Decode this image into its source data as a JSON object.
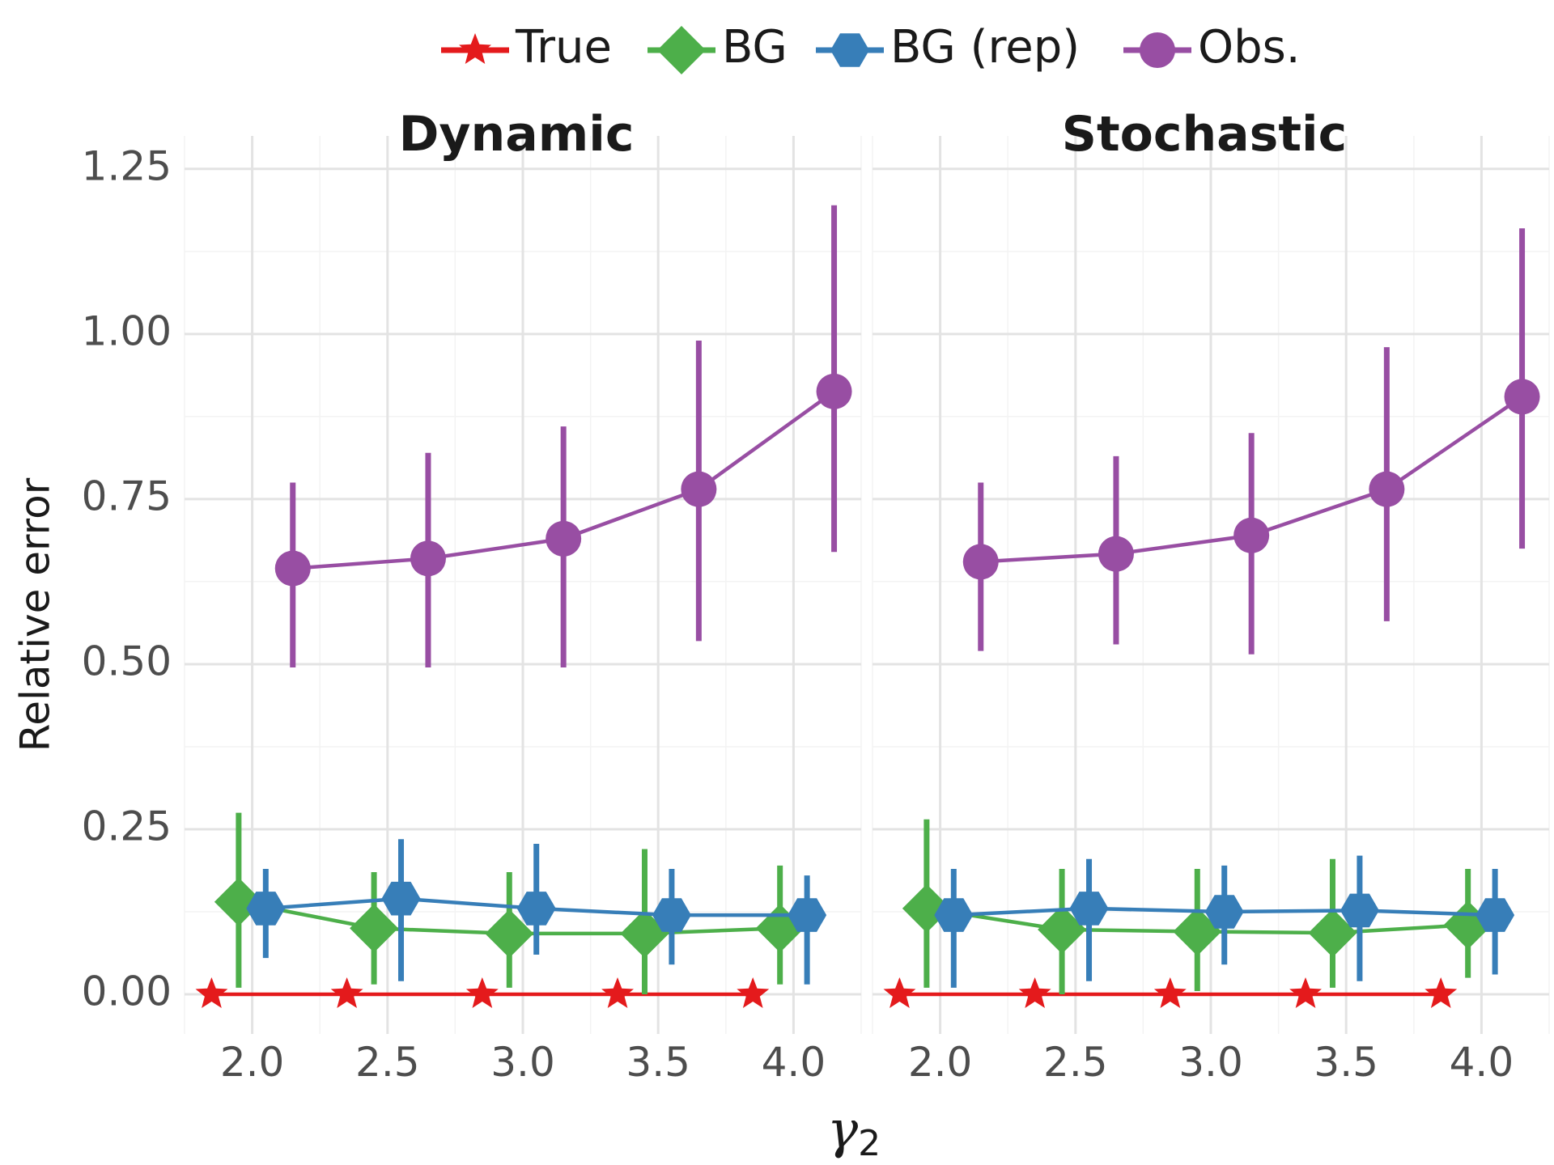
{
  "chart_data": {
    "type": "line",
    "ylabel": "Relative error",
    "xlabel_symbol": "γ",
    "xlabel_subscript": "2",
    "xlim": [
      1.75,
      4.25
    ],
    "ylim": [
      -0.06,
      1.3
    ],
    "x_ticks": [
      2.0,
      2.5,
      3.0,
      3.5,
      4.0
    ],
    "x_tick_labels": [
      "2.0",
      "2.5",
      "3.0",
      "3.5",
      "4.0"
    ],
    "y_ticks": [
      0.0,
      0.25,
      0.5,
      0.75,
      1.0,
      1.25
    ],
    "y_tick_labels": [
      "0.00",
      "0.25",
      "0.50",
      "0.75",
      "1.00",
      "1.25"
    ],
    "grid": true,
    "legend_position": "top",
    "legend": [
      {
        "label": "True",
        "color": "#e41a1c",
        "shape": "star"
      },
      {
        "label": "BG",
        "color": "#4daf4a",
        "shape": "diamond"
      },
      {
        "label": "BG (rep)",
        "color": "#377eb8",
        "shape": "hexagon"
      },
      {
        "label": "Obs.",
        "color": "#984ea3",
        "shape": "circle"
      }
    ],
    "x": [
      2.0,
      2.5,
      3.0,
      3.5,
      4.0
    ],
    "dodge_offsets": {
      "True": -0.15,
      "BG": -0.05,
      "BG (rep)": 0.05,
      "Obs.": 0.15
    },
    "panels": [
      {
        "title": "Dynamic",
        "series": [
          {
            "name": "True",
            "values": [
              0,
              0,
              0,
              0,
              0
            ],
            "lower": [
              0,
              0,
              0,
              0,
              0
            ],
            "upper": [
              0,
              0,
              0,
              0,
              0
            ]
          },
          {
            "name": "BG",
            "values": [
              0.14,
              0.1,
              0.092,
              0.092,
              0.1
            ],
            "lower": [
              0.01,
              0.015,
              0.01,
              0.0,
              0.015
            ],
            "upper": [
              0.275,
              0.185,
              0.185,
              0.22,
              0.195
            ]
          },
          {
            "name": "BG (rep)",
            "values": [
              0.13,
              0.145,
              0.13,
              0.12,
              0.12
            ],
            "lower": [
              0.055,
              0.02,
              0.06,
              0.045,
              0.015
            ],
            "upper": [
              0.19,
              0.235,
              0.228,
              0.19,
              0.18
            ]
          },
          {
            "name": "Obs.",
            "values": [
              0.645,
              0.66,
              0.69,
              0.765,
              0.913
            ],
            "lower": [
              0.495,
              0.495,
              0.495,
              0.535,
              0.67
            ],
            "upper": [
              0.775,
              0.82,
              0.86,
              0.99,
              1.195
            ]
          }
        ]
      },
      {
        "title": "Stochastic",
        "series": [
          {
            "name": "True",
            "values": [
              0,
              0,
              0,
              0,
              0
            ],
            "lower": [
              0,
              0,
              0,
              0,
              0
            ],
            "upper": [
              0,
              0,
              0,
              0,
              0
            ]
          },
          {
            "name": "BG",
            "values": [
              0.13,
              0.098,
              0.095,
              0.093,
              0.105
            ],
            "lower": [
              0.01,
              0.0,
              0.005,
              0.01,
              0.025
            ],
            "upper": [
              0.265,
              0.19,
              0.19,
              0.205,
              0.19
            ]
          },
          {
            "name": "BG (rep)",
            "values": [
              0.12,
              0.13,
              0.125,
              0.127,
              0.12
            ],
            "lower": [
              0.01,
              0.02,
              0.045,
              0.02,
              0.03
            ],
            "upper": [
              0.19,
              0.205,
              0.195,
              0.21,
              0.19
            ]
          },
          {
            "name": "Obs.",
            "values": [
              0.655,
              0.667,
              0.695,
              0.765,
              0.905
            ],
            "lower": [
              0.52,
              0.53,
              0.515,
              0.565,
              0.675
            ],
            "upper": [
              0.775,
              0.815,
              0.85,
              0.98,
              1.16
            ]
          }
        ]
      }
    ]
  }
}
